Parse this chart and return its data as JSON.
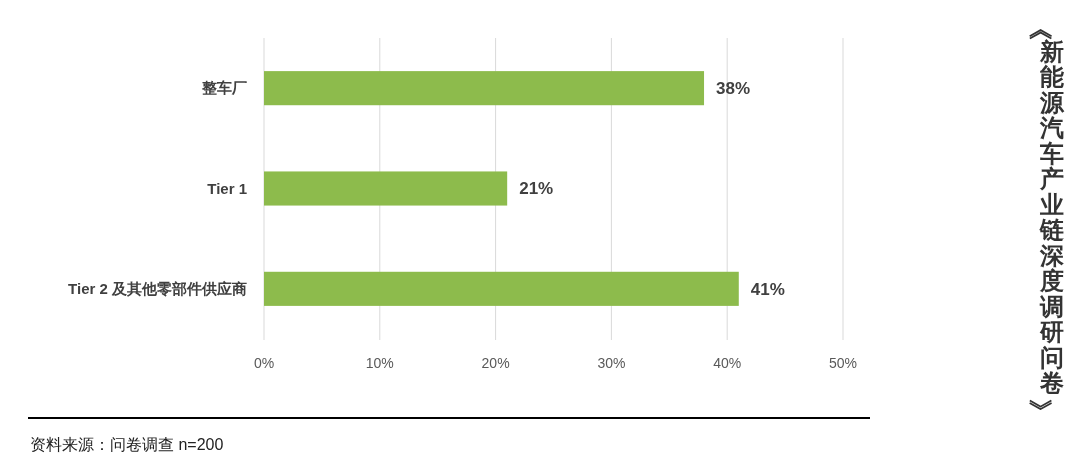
{
  "chart_data": {
    "type": "bar",
    "orientation": "horizontal",
    "title": "《新能源汽车产业链深度调研问卷》",
    "categories": [
      "整车厂",
      "Tier 1",
      "Tier 2 及其他零部件供应商"
    ],
    "values": [
      38,
      21,
      41
    ],
    "color": "#8dbb4c",
    "value_labels": [
      "38%",
      "21%",
      "41%"
    ],
    "xlim": [
      0,
      50
    ],
    "xticks": [
      {
        "value": 0,
        "label": "0%"
      },
      {
        "value": 10,
        "label": "10%"
      },
      {
        "value": 20,
        "label": "20%"
      },
      {
        "value": 30,
        "label": "30%"
      },
      {
        "value": 40,
        "label": "40%"
      },
      {
        "value": 50,
        "label": "50%"
      }
    ],
    "grid": "x",
    "annotations": [
      "资料来源：问卷调查 n=200"
    ]
  }
}
